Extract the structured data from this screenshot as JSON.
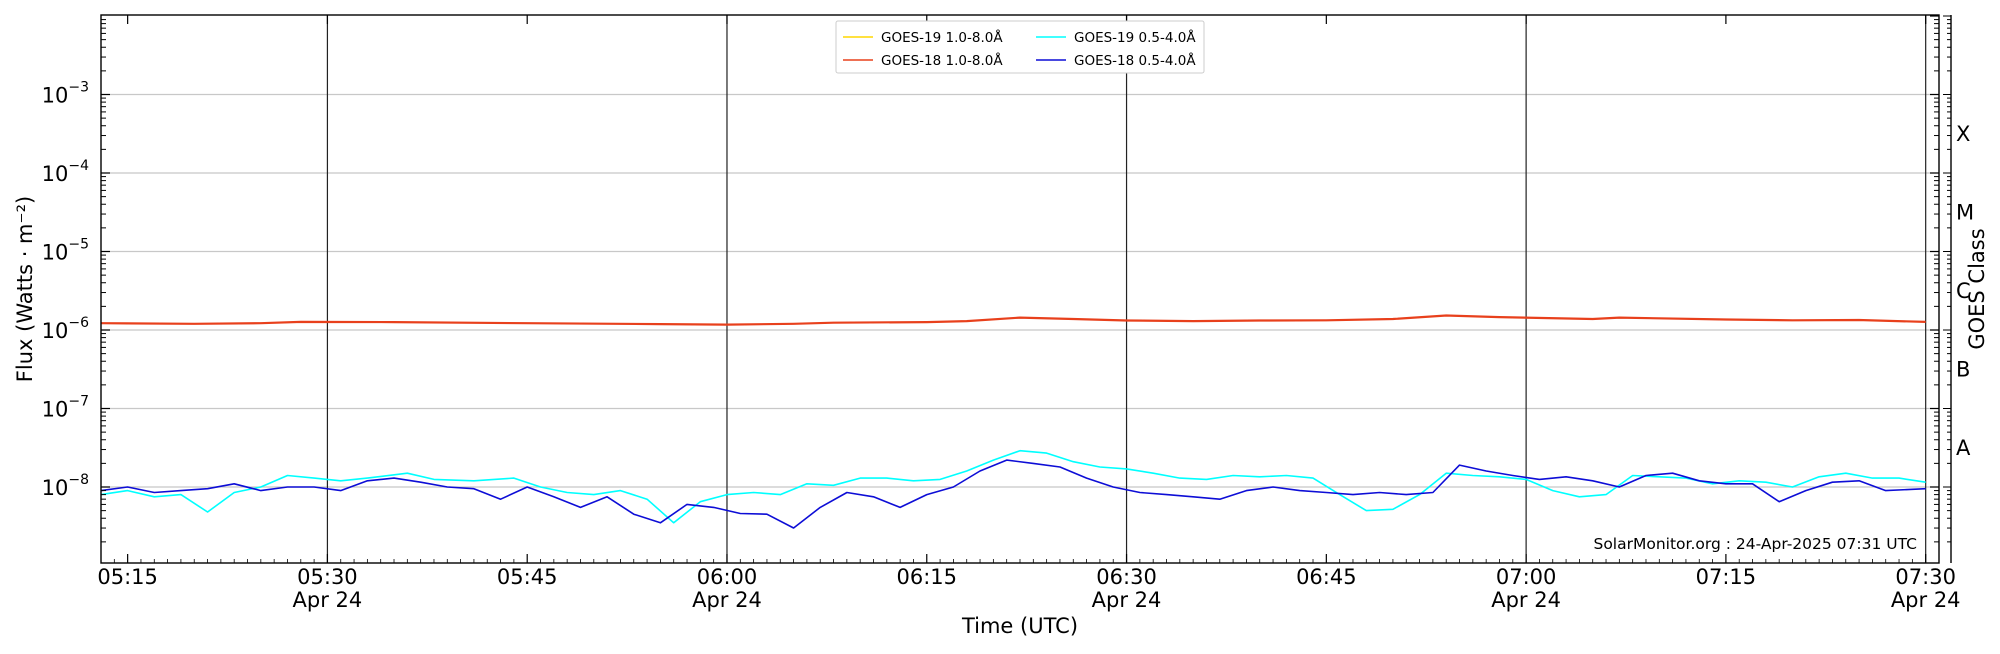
{
  "chart_data": {
    "type": "line",
    "xlabel": "Time (UTC)",
    "ylabel": "Flux (Watts · m⁻²)",
    "ylabel_right": "GOES Class",
    "y_scale": "log",
    "ylim": [
      1e-09,
      0.01
    ],
    "xlim": [
      "2025-04-24 05:13",
      "2025-04-24 07:31"
    ],
    "grid": "horizontal at decades; vertical at 30-minute marks",
    "legend_position": "top-center",
    "y_tick_labels": [
      {
        "exp": -3,
        "base": "10",
        "sup": "−3"
      },
      {
        "exp": -4,
        "base": "10",
        "sup": "−4"
      },
      {
        "exp": -5,
        "base": "10",
        "sup": "−5"
      },
      {
        "exp": -6,
        "base": "10",
        "sup": "−6"
      },
      {
        "exp": -7,
        "base": "10",
        "sup": "−7"
      },
      {
        "exp": -8,
        "base": "10",
        "sup": "−8"
      }
    ],
    "x_ticks": [
      {
        "time": "05:15",
        "label": "05:15",
        "sublabel": ""
      },
      {
        "time": "05:30",
        "label": "05:30",
        "sublabel": "Apr 24"
      },
      {
        "time": "05:45",
        "label": "05:45",
        "sublabel": ""
      },
      {
        "time": "06:00",
        "label": "06:00",
        "sublabel": "Apr 24"
      },
      {
        "time": "06:15",
        "label": "06:15",
        "sublabel": ""
      },
      {
        "time": "06:30",
        "label": "06:30",
        "sublabel": "Apr 24"
      },
      {
        "time": "06:45",
        "label": "06:45",
        "sublabel": ""
      },
      {
        "time": "07:00",
        "label": "07:00",
        "sublabel": "Apr 24"
      },
      {
        "time": "07:15",
        "label": "07:15",
        "sublabel": ""
      },
      {
        "time": "07:30",
        "label": "07:30",
        "sublabel": "Apr 24"
      }
    ],
    "goes_classes": [
      {
        "label": "X",
        "flux": 0.0001
      },
      {
        "label": "M",
        "flux": 1e-05
      },
      {
        "label": "C",
        "flux": 1e-06
      },
      {
        "label": "B",
        "flux": 1e-07
      },
      {
        "label": "A",
        "flux": 1e-08
      }
    ],
    "credit": "SolarMonitor.org : 24-Apr-2025 07:31 UTC",
    "series": [
      {
        "name": "GOES-19 1.0-8.0Å",
        "color": "#ffd700",
        "x": [],
        "y": []
      },
      {
        "name": "GOES-18 1.0-8.0Å",
        "color": "#e8401c",
        "x": [
          "05:13",
          "05:20",
          "05:25",
          "05:28",
          "05:35",
          "05:45",
          "05:55",
          "06:00",
          "06:05",
          "06:08",
          "06:15",
          "06:18",
          "06:22",
          "06:26",
          "06:30",
          "06:35",
          "06:40",
          "06:45",
          "06:50",
          "06:54",
          "06:58",
          "07:05",
          "07:07",
          "07:15",
          "07:20",
          "07:25",
          "07:30"
        ],
        "y": [
          1.22e-06,
          1.2e-06,
          1.22e-06,
          1.27e-06,
          1.26e-06,
          1.22e-06,
          1.19e-06,
          1.17e-06,
          1.2e-06,
          1.24e-06,
          1.26e-06,
          1.3e-06,
          1.44e-06,
          1.38e-06,
          1.32e-06,
          1.3e-06,
          1.32e-06,
          1.33e-06,
          1.38e-06,
          1.53e-06,
          1.46e-06,
          1.38e-06,
          1.44e-06,
          1.36e-06,
          1.33e-06,
          1.34e-06,
          1.27e-06
        ]
      },
      {
        "name": "GOES-19 0.5-4.0Å",
        "color": "#00ffff",
        "x": [
          "05:13",
          "05:15",
          "05:17",
          "05:19",
          "05:21",
          "05:23",
          "05:25",
          "05:27",
          "05:29",
          "05:31",
          "05:33",
          "05:36",
          "05:38",
          "05:41",
          "05:44",
          "05:46",
          "05:48",
          "05:50",
          "05:52",
          "05:54",
          "05:56",
          "05:58",
          "06:00",
          "06:02",
          "06:04",
          "06:06",
          "06:08",
          "06:10",
          "06:12",
          "06:14",
          "06:16",
          "06:18",
          "06:20",
          "06:22",
          "06:24",
          "06:26",
          "06:28",
          "06:30",
          "06:32",
          "06:34",
          "06:36",
          "06:38",
          "06:40",
          "06:42",
          "06:44",
          "06:46",
          "06:48",
          "06:50",
          "06:52",
          "06:54",
          "06:56",
          "06:58",
          "07:00",
          "07:02",
          "07:04",
          "07:06",
          "07:08",
          "07:10",
          "07:12",
          "07:14",
          "07:16",
          "07:18",
          "07:20",
          "07:22",
          "07:24",
          "07:26",
          "07:28",
          "07:30"
        ],
        "y": [
          8e-09,
          9e-09,
          7.5e-09,
          8e-09,
          4.8e-09,
          8.5e-09,
          1e-08,
          1.4e-08,
          1.3e-08,
          1.2e-08,
          1.3e-08,
          1.5e-08,
          1.25e-08,
          1.2e-08,
          1.3e-08,
          1e-08,
          8.5e-09,
          8e-09,
          9e-09,
          7e-09,
          3.5e-09,
          6.5e-09,
          8e-09,
          8.5e-09,
          8e-09,
          1.1e-08,
          1.05e-08,
          1.3e-08,
          1.3e-08,
          1.2e-08,
          1.25e-08,
          1.6e-08,
          2.2e-08,
          2.9e-08,
          2.7e-08,
          2.1e-08,
          1.8e-08,
          1.7e-08,
          1.5e-08,
          1.3e-08,
          1.25e-08,
          1.4e-08,
          1.35e-08,
          1.4e-08,
          1.3e-08,
          8e-09,
          5e-09,
          5.2e-09,
          8e-09,
          1.5e-08,
          1.4e-08,
          1.35e-08,
          1.25e-08,
          9e-09,
          7.5e-09,
          8e-09,
          1.4e-08,
          1.35e-08,
          1.3e-08,
          1.1e-08,
          1.2e-08,
          1.15e-08,
          1e-08,
          1.35e-08,
          1.5e-08,
          1.3e-08,
          1.3e-08,
          1.15e-08
        ]
      },
      {
        "name": "GOES-18 0.5-4.0Å",
        "color": "#0d0dd6",
        "x": [
          "05:13",
          "05:15",
          "05:17",
          "05:19",
          "05:21",
          "05:23",
          "05:25",
          "05:27",
          "05:29",
          "05:31",
          "05:33",
          "05:35",
          "05:37",
          "05:39",
          "05:41",
          "05:43",
          "05:45",
          "05:47",
          "05:49",
          "05:51",
          "05:53",
          "05:55",
          "05:57",
          "05:59",
          "06:01",
          "06:03",
          "06:05",
          "06:07",
          "06:09",
          "06:11",
          "06:13",
          "06:15",
          "06:17",
          "06:19",
          "06:21",
          "06:23",
          "06:25",
          "06:27",
          "06:29",
          "06:31",
          "06:33",
          "06:35",
          "06:37",
          "06:39",
          "06:41",
          "06:43",
          "06:45",
          "06:47",
          "06:49",
          "06:51",
          "06:53",
          "06:55",
          "06:57",
          "06:59",
          "07:01",
          "07:03",
          "07:05",
          "07:07",
          "07:09",
          "07:11",
          "07:13",
          "07:15",
          "07:17",
          "07:19",
          "07:21",
          "07:23",
          "07:25",
          "07:27",
          "07:30"
        ],
        "y": [
          9e-09,
          1e-08,
          8.5e-09,
          9e-09,
          9.5e-09,
          1.1e-08,
          9e-09,
          1e-08,
          1e-08,
          9e-09,
          1.2e-08,
          1.3e-08,
          1.15e-08,
          1e-08,
          9.5e-09,
          7e-09,
          1e-08,
          7.5e-09,
          5.5e-09,
          7.5e-09,
          4.5e-09,
          3.5e-09,
          6e-09,
          5.5e-09,
          4.6e-09,
          4.5e-09,
          3e-09,
          5.5e-09,
          8.5e-09,
          7.5e-09,
          5.5e-09,
          8e-09,
          1e-08,
          1.6e-08,
          2.2e-08,
          2e-08,
          1.8e-08,
          1.3e-08,
          1e-08,
          8.5e-09,
          8e-09,
          7.5e-09,
          7e-09,
          9e-09,
          1e-08,
          9e-09,
          8.5e-09,
          8e-09,
          8.5e-09,
          8e-09,
          8.5e-09,
          1.9e-08,
          1.6e-08,
          1.4e-08,
          1.25e-08,
          1.35e-08,
          1.2e-08,
          1e-08,
          1.4e-08,
          1.5e-08,
          1.2e-08,
          1.1e-08,
          1.1e-08,
          6.5e-09,
          9e-09,
          1.15e-08,
          1.2e-08,
          9e-09,
          9.5e-09
        ]
      }
    ]
  }
}
